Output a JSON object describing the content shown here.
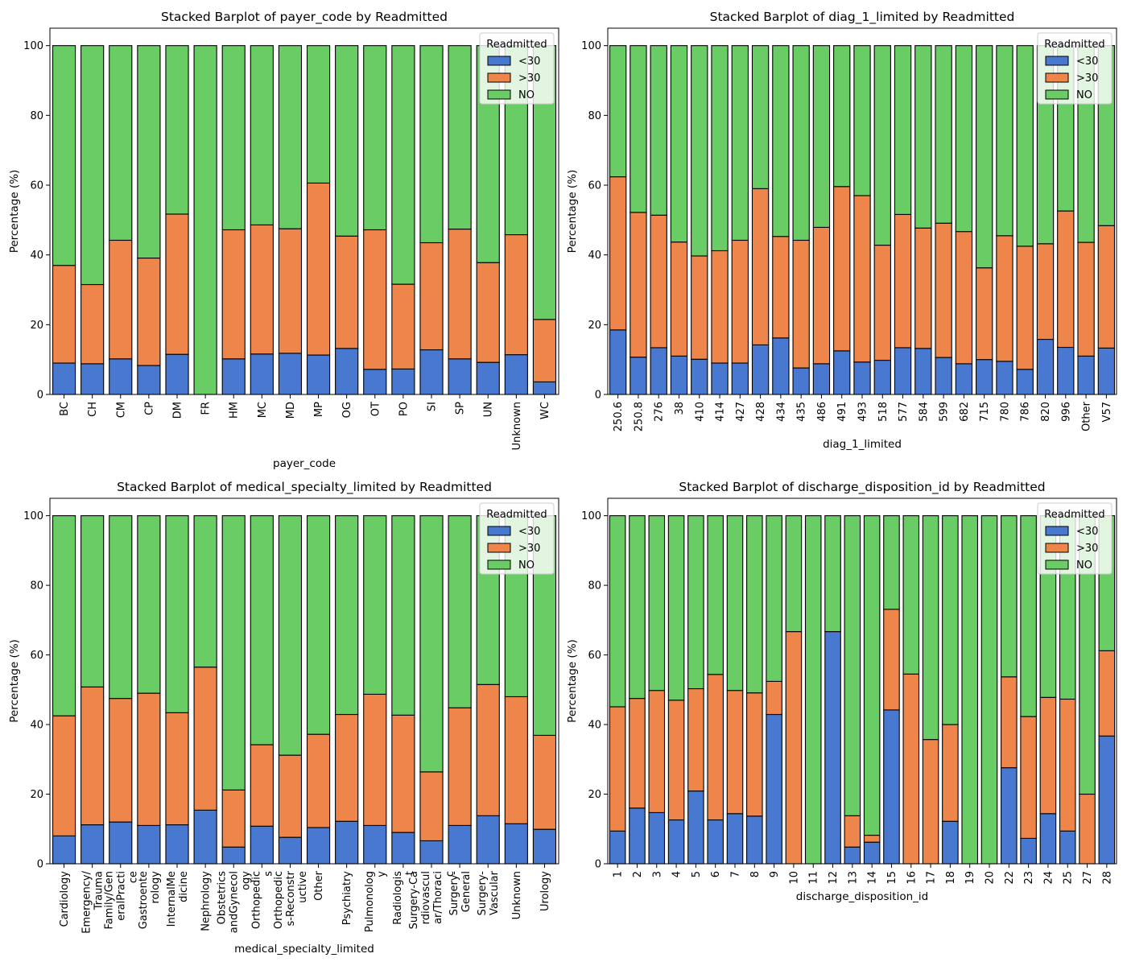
{
  "colors": {
    "<30": "#4878d0",
    ">30": "#ee854a",
    "NO": "#6acc64"
  },
  "chart_data": [
    {
      "type": "bar",
      "stacked": true,
      "title": "Stacked Barplot of payer_code by Readmitted",
      "xlabel": "payer_code",
      "ylabel": "Percentage (%)",
      "ylim": [
        0,
        105
      ],
      "yticks": [
        0,
        20,
        40,
        60,
        80,
        100
      ],
      "legend": {
        "title": "Readmitted",
        "position": "top-right"
      },
      "categories": [
        "BC",
        "CH",
        "CM",
        "CP",
        "DM",
        "FR",
        "HM",
        "MC",
        "MD",
        "MP",
        "OG",
        "OT",
        "PO",
        "SI",
        "SP",
        "UN",
        "Unknown",
        "WC"
      ],
      "series": [
        {
          "name": "<30",
          "values": [
            9.0,
            8.8,
            10.2,
            8.3,
            11.5,
            0,
            10.2,
            11.6,
            11.8,
            11.3,
            13.2,
            7.2,
            7.3,
            12.8,
            10.2,
            9.2,
            11.4,
            3.6
          ]
        },
        {
          "name": ">30",
          "values": [
            28.0,
            22.7,
            34.0,
            30.8,
            40.2,
            0,
            37.0,
            37.0,
            35.7,
            49.3,
            32.2,
            40.0,
            24.3,
            30.7,
            37.2,
            28.6,
            34.4,
            17.9
          ]
        },
        {
          "name": "NO",
          "values": [
            63.0,
            68.5,
            55.8,
            60.9,
            48.3,
            100,
            52.8,
            51.4,
            52.5,
            39.4,
            54.6,
            52.8,
            68.4,
            56.5,
            52.6,
            62.2,
            54.2,
            78.5
          ]
        }
      ]
    },
    {
      "type": "bar",
      "stacked": true,
      "title": "Stacked Barplot of diag_1_limited by Readmitted",
      "xlabel": "diag_1_limited",
      "ylabel": "Percentage (%)",
      "ylim": [
        0,
        105
      ],
      "yticks": [
        0,
        20,
        40,
        60,
        80,
        100
      ],
      "legend": {
        "title": "Readmitted",
        "position": "top-right"
      },
      "categories": [
        "250.6",
        "250.8",
        "276",
        "38",
        "410",
        "414",
        "427",
        "428",
        "434",
        "435",
        "486",
        "491",
        "493",
        "518",
        "577",
        "584",
        "599",
        "682",
        "715",
        "780",
        "786",
        "820",
        "996",
        "Other",
        "V57"
      ],
      "series": [
        {
          "name": "<30",
          "values": [
            18.5,
            10.7,
            13.4,
            11.0,
            10.1,
            9.0,
            9.0,
            14.2,
            16.2,
            7.6,
            8.8,
            12.5,
            9.3,
            9.8,
            13.4,
            13.2,
            10.6,
            8.8,
            10.0,
            9.5,
            7.2,
            15.8,
            13.5,
            11.0,
            13.3
          ]
        },
        {
          "name": ">30",
          "values": [
            43.9,
            41.5,
            38.0,
            32.7,
            29.6,
            32.2,
            35.2,
            44.8,
            29.1,
            36.6,
            39.1,
            47.1,
            47.7,
            33.0,
            38.2,
            34.5,
            38.5,
            37.9,
            26.3,
            36.0,
            35.3,
            27.4,
            39.1,
            32.6,
            35.1
          ]
        },
        {
          "name": "NO",
          "values": [
            37.6,
            47.8,
            48.6,
            56.3,
            60.3,
            58.8,
            55.8,
            41.0,
            54.7,
            55.8,
            52.1,
            40.4,
            43.0,
            57.2,
            48.4,
            52.3,
            50.9,
            53.3,
            63.7,
            54.5,
            57.5,
            56.8,
            47.4,
            56.4,
            51.6
          ]
        }
      ]
    },
    {
      "type": "bar",
      "stacked": true,
      "title": "Stacked Barplot of medical_specialty_limited by Readmitted",
      "xlabel": "medical_specialty_limited",
      "ylabel": "Percentage (%)",
      "ylim": [
        0,
        105
      ],
      "yticks": [
        0,
        20,
        40,
        60,
        80,
        100
      ],
      "legend": {
        "title": "Readmitted",
        "position": "top-right"
      },
      "categories": [
        [
          "Cardiology"
        ],
        [
          "Emergency/",
          "Trauma"
        ],
        [
          "Family/Gen",
          "eralPracti",
          "ce"
        ],
        [
          "Gastroente",
          "rology"
        ],
        [
          "InternalMe",
          "dicine"
        ],
        [
          "Nephrology"
        ],
        [
          "Obstetrics",
          "andGynecol",
          "ogy"
        ],
        [
          "Orthopedic",
          "s"
        ],
        [
          "Orthopedic",
          "s-Reconstr",
          "uctive"
        ],
        [
          "Other"
        ],
        [
          "Psychiatry"
        ],
        [
          "Pulmonolog",
          "y"
        ],
        [
          "Radiologis",
          "t"
        ],
        [
          "Surgery-Ca",
          "rdiovascul",
          "ar/Thoraci",
          "c"
        ],
        [
          "Surgery-",
          "General"
        ],
        [
          "Surgery-",
          "Vascular"
        ],
        [
          "Unknown"
        ],
        [
          "Urology"
        ]
      ],
      "series": [
        {
          "name": "<30",
          "values": [
            8.0,
            11.2,
            12.0,
            11.0,
            11.2,
            15.4,
            4.8,
            10.8,
            7.6,
            10.4,
            12.2,
            11.0,
            9.0,
            6.6,
            11.0,
            13.8,
            11.5,
            9.9
          ]
        },
        {
          "name": ">30",
          "values": [
            34.5,
            39.6,
            35.5,
            38.0,
            32.2,
            41.1,
            16.4,
            23.4,
            23.6,
            26.8,
            30.7,
            37.7,
            33.7,
            19.8,
            33.8,
            37.7,
            36.5,
            27.0
          ]
        },
        {
          "name": "NO",
          "values": [
            57.5,
            49.2,
            52.5,
            51.0,
            56.6,
            43.5,
            78.8,
            65.8,
            68.8,
            62.8,
            57.1,
            51.3,
            57.3,
            73.6,
            55.2,
            48.5,
            52.0,
            63.1
          ]
        }
      ]
    },
    {
      "type": "bar",
      "stacked": true,
      "title": "Stacked Barplot of discharge_disposition_id by Readmitted",
      "xlabel": "discharge_disposition_id",
      "ylabel": "Percentage (%)",
      "ylim": [
        0,
        105
      ],
      "yticks": [
        0,
        20,
        40,
        60,
        80,
        100
      ],
      "legend": {
        "title": "Readmitted",
        "position": "top-right"
      },
      "categories": [
        "1",
        "2",
        "3",
        "4",
        "5",
        "6",
        "7",
        "8",
        "9",
        "10",
        "11",
        "12",
        "13",
        "14",
        "15",
        "16",
        "17",
        "18",
        "19",
        "20",
        "22",
        "23",
        "24",
        "25",
        "27",
        "28"
      ],
      "series": [
        {
          "name": "<30",
          "values": [
            9.4,
            16.0,
            14.7,
            12.6,
            20.9,
            12.6,
            14.4,
            13.7,
            42.9,
            0,
            0,
            66.7,
            4.8,
            6.2,
            44.2,
            0,
            0,
            12.2,
            0,
            0,
            27.6,
            7.3,
            14.4,
            9.4,
            0,
            36.7
          ]
        },
        {
          "name": ">30",
          "values": [
            35.7,
            31.5,
            35.1,
            34.4,
            29.4,
            41.8,
            35.4,
            35.4,
            9.5,
            66.7,
            0,
            0,
            9.0,
            2.0,
            28.9,
            54.5,
            35.7,
            27.8,
            0,
            0,
            26.1,
            35.0,
            33.4,
            37.9,
            20.0,
            24.5
          ]
        },
        {
          "name": "NO",
          "values": [
            54.9,
            52.5,
            50.2,
            53.0,
            49.7,
            45.6,
            50.2,
            50.9,
            47.6,
            33.3,
            100,
            33.3,
            86.2,
            91.8,
            26.9,
            45.5,
            64.3,
            60.0,
            100,
            100,
            46.3,
            57.7,
            52.2,
            52.7,
            80.0,
            38.8
          ]
        }
      ]
    }
  ]
}
